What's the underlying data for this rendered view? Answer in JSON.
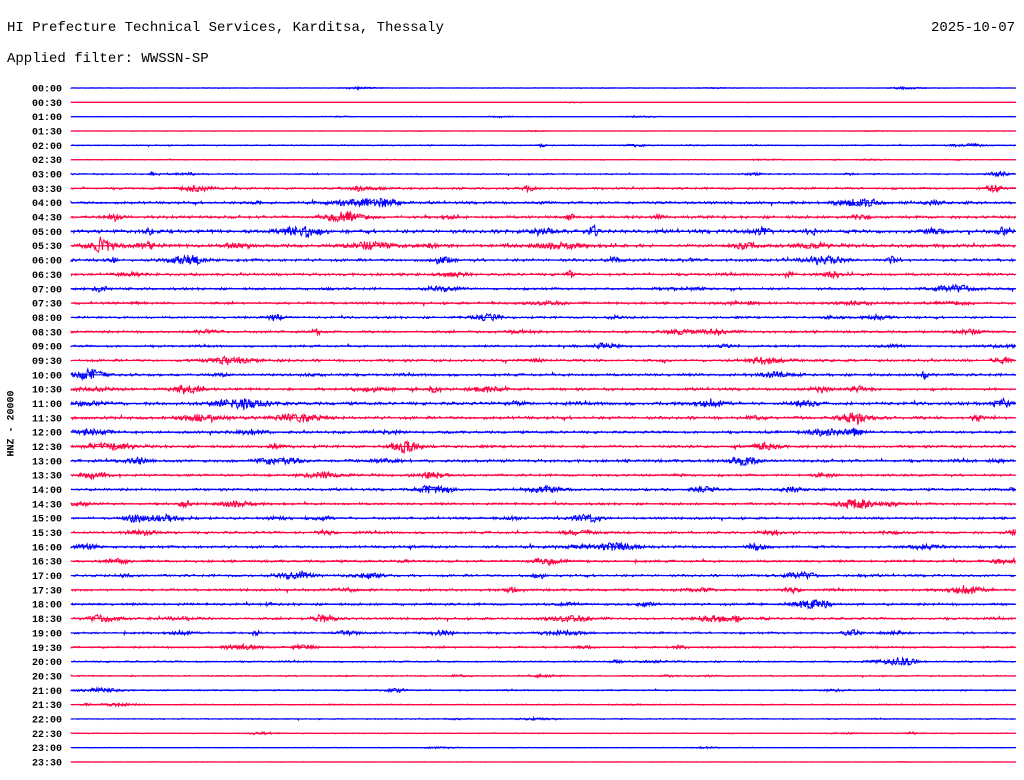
{
  "header": {
    "station": "HI Prefecture Technical Services, Karditsa, Thessaly",
    "date": "2025-10-07",
    "filter": "Applied filter: WWSSN-SP"
  },
  "chart_data": {
    "type": "line",
    "title": "HI Prefecture Technical Services, Karditsa, Thessaly",
    "ylabel": "HNZ - 20000",
    "colors": [
      "#0000ff",
      "#ff0040"
    ],
    "rows": [
      "00:00",
      "00:30",
      "01:00",
      "01:30",
      "02:00",
      "02:30",
      "03:00",
      "03:30",
      "04:00",
      "04:30",
      "05:00",
      "05:30",
      "06:00",
      "06:30",
      "07:00",
      "07:30",
      "08:00",
      "08:30",
      "09:00",
      "09:30",
      "10:00",
      "10:30",
      "11:00",
      "11:30",
      "12:00",
      "12:30",
      "13:00",
      "13:30",
      "14:00",
      "14:30",
      "15:00",
      "15:30",
      "16:00",
      "16:30",
      "17:00",
      "17:30",
      "18:00",
      "18:30",
      "19:00",
      "19:30",
      "20:00",
      "20:30",
      "21:00",
      "21:30",
      "22:00",
      "22:30",
      "23:00",
      "23:30"
    ],
    "activity": [
      0.15,
      0.1,
      0.15,
      0.1,
      0.25,
      0.2,
      0.3,
      0.45,
      0.55,
      0.6,
      0.75,
      0.7,
      0.6,
      0.55,
      0.5,
      0.5,
      0.45,
      0.5,
      0.45,
      0.55,
      0.55,
      0.55,
      0.65,
      0.65,
      0.55,
      0.55,
      0.6,
      0.5,
      0.5,
      0.5,
      0.5,
      0.5,
      0.55,
      0.5,
      0.5,
      0.5,
      0.5,
      0.5,
      0.45,
      0.4,
      0.35,
      0.3,
      0.3,
      0.25,
      0.25,
      0.2,
      0.15,
      0.1
    ]
  }
}
